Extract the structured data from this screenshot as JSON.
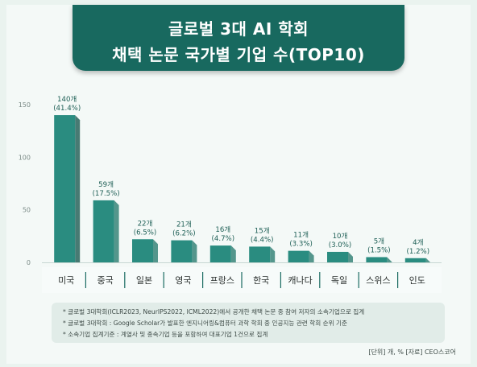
{
  "header": {
    "title_line1": "글로벌 3대 AI 학회",
    "title_line2": "채택 논문 국가별 기업 수(TOP10)"
  },
  "colors": {
    "background": "#eaf3ef",
    "banner": "#18695f",
    "bar_top": "#2a8c80",
    "bar_first_side": "#0d4f47",
    "bar_side": "#1f7468",
    "category_bar": "#f7fbfa",
    "separator": "#1a6b61"
  },
  "chart_data": {
    "type": "bar",
    "title": "글로벌 3대 AI 학회 채택 논문 국가별 기업 수(TOP10)",
    "xlabel": "",
    "ylabel": "",
    "ylim": [
      0,
      150
    ],
    "yticks": [
      0,
      50,
      100,
      150
    ],
    "yticklabels": [
      "0",
      "50",
      "100",
      "150"
    ],
    "grid": false,
    "legend": "none",
    "categories": [
      "미국",
      "중국",
      "일본",
      "영국",
      "프랑스",
      "한국",
      "캐나다",
      "독일",
      "스위스",
      "인도"
    ],
    "values": [
      140,
      59,
      22,
      21,
      16,
      15,
      11,
      10,
      5,
      4
    ],
    "value_labels": [
      "140개",
      "59개",
      "22개",
      "21개",
      "16개",
      "15개",
      "11개",
      "10개",
      "5개",
      "4개"
    ],
    "percent_labels": [
      "(41.4%)",
      "(17.5%)",
      "(6.5%)",
      "(6.2%)",
      "(4.7%)",
      "(4.4%)",
      "(3.3%)",
      "(3.0%)",
      "(1.5%)",
      "(1.2%)"
    ]
  },
  "notes": [
    "* 글로벌 3대학회(ICLR2023, NeurIPS2022, ICML2022)에서 공개한 채택 논문 중 참여 저자의 소속기업으로 집계",
    "* 글로벌 3대학회 : Google Scholar가 발표한 엔지니어링&컴퓨터 과학 학회 중 인공지능 관련 학회 순위 기준",
    "* 소속기업 집계기준 : 계열사 및 종속기업 등을 포함하여 대표기업 1건으로 집계"
  ],
  "source": "[단위] 개, %   [자료] CEO스코어"
}
